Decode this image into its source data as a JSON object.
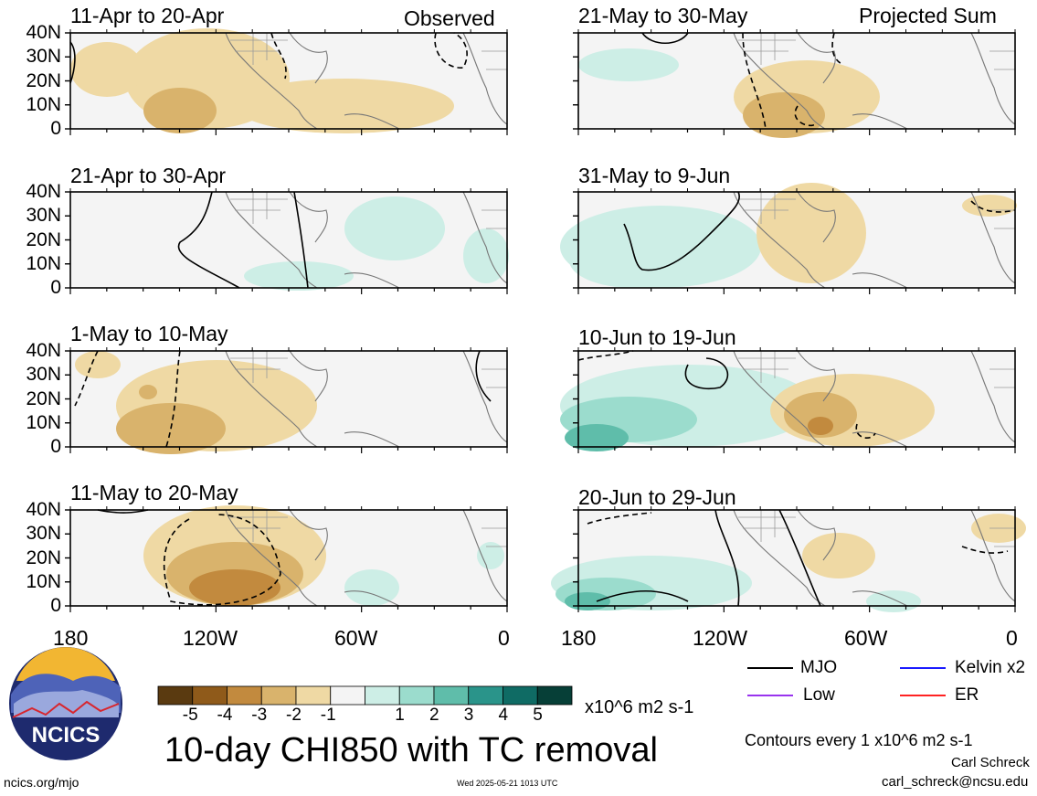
{
  "header": {
    "observed_label": "Observed",
    "projected_label": "Projected Sum"
  },
  "panels": [
    {
      "title": "11-Apr to 20-Apr"
    },
    {
      "title": "21-Apr to 30-Apr"
    },
    {
      "title": "1-May to 10-May"
    },
    {
      "title": "11-May to 20-May"
    },
    {
      "title": "21-May to 30-May"
    },
    {
      "title": "31-May to 9-Jun"
    },
    {
      "title": "10-Jun to 19-Jun"
    },
    {
      "title": "20-Jun to 29-Jun"
    }
  ],
  "y_axis": {
    "ticks": [
      "40N",
      "30N",
      "20N",
      "10N",
      "0"
    ]
  },
  "x_axis": {
    "ticks": [
      "180",
      "120W",
      "60W",
      "0"
    ]
  },
  "colorbar": {
    "colors": [
      "#5a3a10",
      "#8f5a1a",
      "#c28a3e",
      "#d9b36c",
      "#efd9a4",
      "#f4f4f4",
      "#cdeee6",
      "#9bdccd",
      "#5fbdaa",
      "#2a948a",
      "#0f6b64",
      "#063f37"
    ],
    "ticks": [
      "-5",
      "-4",
      "-3",
      "-2",
      "-1",
      "1",
      "2",
      "3",
      "4",
      "5"
    ],
    "units": "x10^6 m2 s-1"
  },
  "main_title": "10-day CHI850 with TC removal",
  "legend": [
    {
      "label": "MJO",
      "color": "#000000"
    },
    {
      "label": "Kelvin x2",
      "color": "#1a1aff"
    },
    {
      "label": "Low",
      "color": "#9933ee"
    },
    {
      "label": "ER",
      "color": "#ff2222"
    }
  ],
  "contour_note": "Contours every 1 x10^6 m2 s-1",
  "author": "Carl Schreck",
  "email": "carl_schreck@ncsu.edu",
  "site": "ncics.org/mjo",
  "timestamp": "Wed 2025-05-21 1013 UTC",
  "logo_text": "NCICS"
}
